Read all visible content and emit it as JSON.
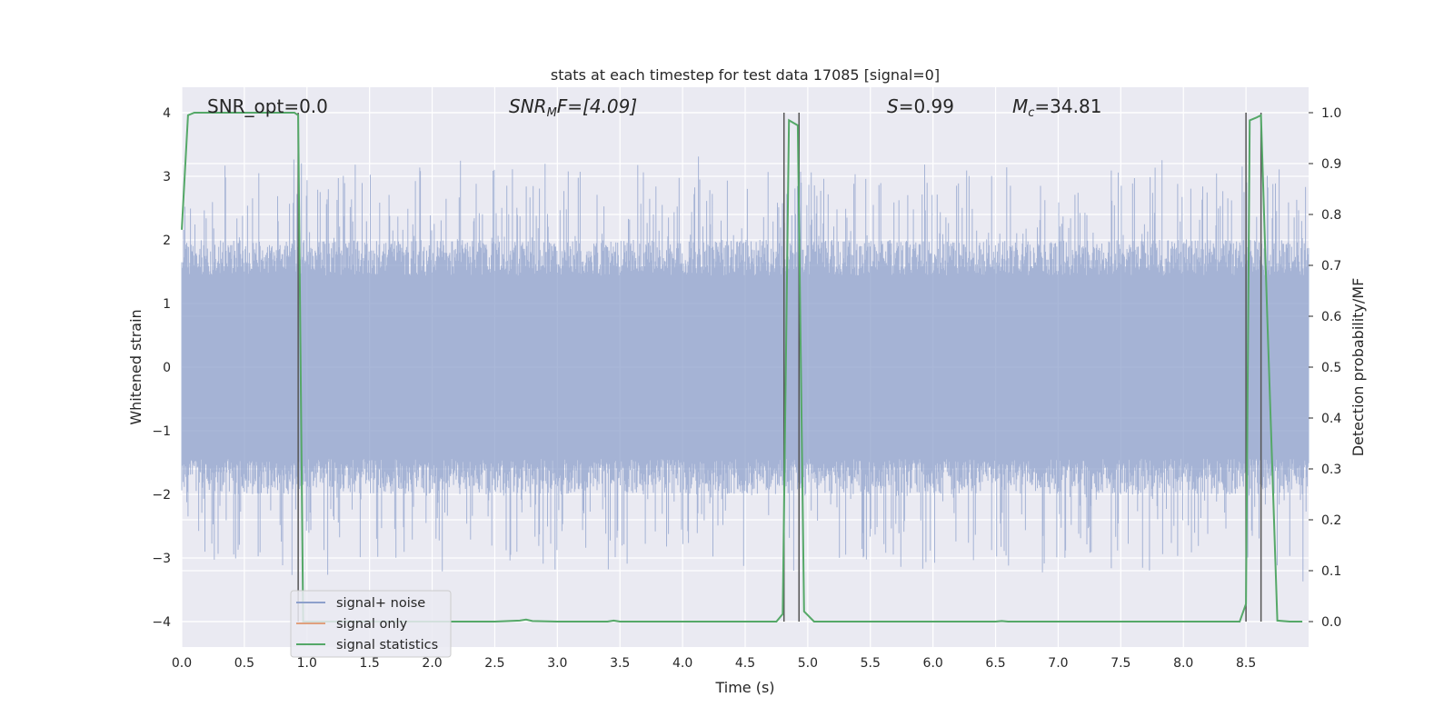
{
  "chart_data": {
    "type": "line",
    "title": "stats at each timestep for test data 17085 [signal=0]",
    "xlabel": "Time (s)",
    "ylabel_left": "Whitened strain",
    "ylabel_right": "Detection probability/MF",
    "xlim": [
      0.0,
      9.0
    ],
    "ylim_left": [
      -4.4,
      4.4
    ],
    "ylim_right": [
      -0.05,
      1.05
    ],
    "x_ticks": [
      "0.0",
      "0.5",
      "1.0",
      "1.5",
      "2.0",
      "2.5",
      "3.0",
      "3.5",
      "4.0",
      "4.5",
      "5.0",
      "5.5",
      "6.0",
      "6.5",
      "7.0",
      "7.5",
      "8.0",
      "8.5"
    ],
    "y_ticks_left": [
      "4",
      "3",
      "2",
      "1",
      "0",
      "−1",
      "−2",
      "−3",
      "−4"
    ],
    "y_ticks_right": [
      "1.0",
      "0.9",
      "0.8",
      "0.7",
      "0.6",
      "0.5",
      "0.4",
      "0.3",
      "0.2",
      "0.1",
      "0.0"
    ],
    "grid": true,
    "legend_position": "lower-left",
    "annotations": {
      "snr_opt": "SNR_opt=0.0",
      "snr_mf_prefix": "SNR",
      "snr_mf_sub": "M",
      "snr_mf_suffix": "F=[4.09]",
      "s_prefix": "S",
      "s_suffix": "=0.99",
      "mc_prefix": "M",
      "mc_sub": "c",
      "mc_suffix": "=34.81"
    },
    "vertical_markers": [
      0.93,
      4.81,
      4.93,
      8.5,
      8.62
    ],
    "series": [
      {
        "name": "signal+ noise",
        "color": "#8da0cb",
        "axis": "left",
        "description_style": "dense noise band",
        "envelope": {
          "x_start": 0.0,
          "x_end": 9.0,
          "amplitude_typical": 1.6,
          "amplitude_peak": 4.0
        }
      },
      {
        "name": "signal only",
        "color": "#e0a07e",
        "axis": "left",
        "values": []
      },
      {
        "name": "signal statistics",
        "color": "#55a868",
        "axis": "right",
        "x": [
          0.0,
          0.05,
          0.1,
          0.2,
          0.3,
          0.4,
          0.5,
          0.6,
          0.7,
          0.8,
          0.9,
          0.93,
          0.97,
          1.05,
          1.5,
          2.0,
          2.5,
          2.7,
          2.75,
          2.8,
          3.0,
          3.4,
          3.45,
          3.5,
          4.0,
          4.5,
          4.75,
          4.8,
          4.85,
          4.92,
          4.97,
          5.05,
          5.5,
          6.0,
          6.5,
          6.55,
          6.6,
          7.0,
          7.5,
          8.0,
          8.45,
          8.5,
          8.53,
          8.58,
          8.62,
          8.67,
          8.75,
          8.85,
          8.95
        ],
        "values": [
          0.77,
          0.995,
          1.0,
          1.0,
          1.0,
          1.0,
          1.0,
          1.0,
          1.0,
          1.0,
          1.0,
          0.995,
          0.0,
          0.0,
          0.0,
          0.0,
          0.0,
          0.002,
          0.004,
          0.001,
          0.0,
          0.0,
          0.002,
          0.0,
          0.0,
          0.0,
          0.0,
          0.015,
          0.985,
          0.975,
          0.02,
          0.0,
          0.0,
          0.0,
          0.0,
          0.001,
          0.0,
          0.0,
          0.0,
          0.0,
          0.0,
          0.035,
          0.985,
          0.99,
          0.995,
          0.6,
          0.002,
          0.0,
          0.0
        ]
      }
    ]
  }
}
